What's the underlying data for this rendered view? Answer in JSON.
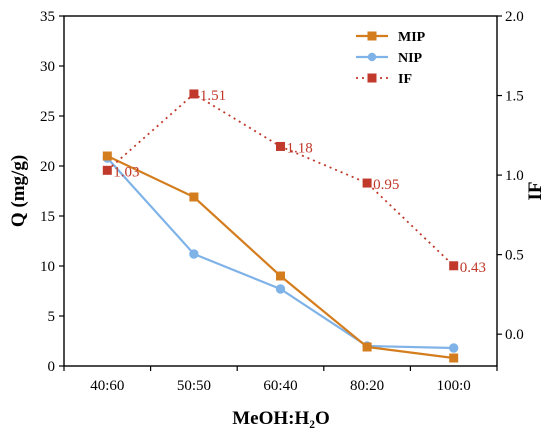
{
  "chart_data": {
    "type": "line",
    "categories": [
      "40:60",
      "50:50",
      "60:40",
      "80:20",
      "100:0"
    ],
    "xlabel": "MeOH:H₂O",
    "ylabel_left": "Q (mg/g)",
    "ylabel_right": "IF",
    "ylim_left": [
      0,
      35
    ],
    "ylim_right": [
      -0.2,
      2.0
    ],
    "yticks_left": [
      0,
      5,
      10,
      15,
      20,
      25,
      30,
      35
    ],
    "yticks_right": [
      0.0,
      0.5,
      1.0,
      1.5,
      2.0
    ],
    "ytick_labels_right": [
      "0.0",
      "0.5",
      "1.0",
      "1.5",
      "2.0"
    ],
    "legend_position": "top-right",
    "series": [
      {
        "name": "MIP",
        "axis": "left",
        "values": [
          21.0,
          16.9,
          9.0,
          1.9,
          0.8
        ],
        "color": "#d47d1e",
        "marker": "square",
        "line": "solid"
      },
      {
        "name": "NIP",
        "axis": "left",
        "values": [
          20.8,
          11.2,
          7.7,
          2.0,
          1.8
        ],
        "color": "#7fb3e8",
        "marker": "circle",
        "line": "solid"
      },
      {
        "name": "IF",
        "axis": "right",
        "values": [
          1.03,
          1.51,
          1.18,
          0.95,
          0.43
        ],
        "labels": [
          "1.03",
          "1.51",
          "1.18",
          "0.95",
          "0.43"
        ],
        "color": "#c0392b",
        "marker": "square",
        "line": "dotted"
      }
    ]
  }
}
